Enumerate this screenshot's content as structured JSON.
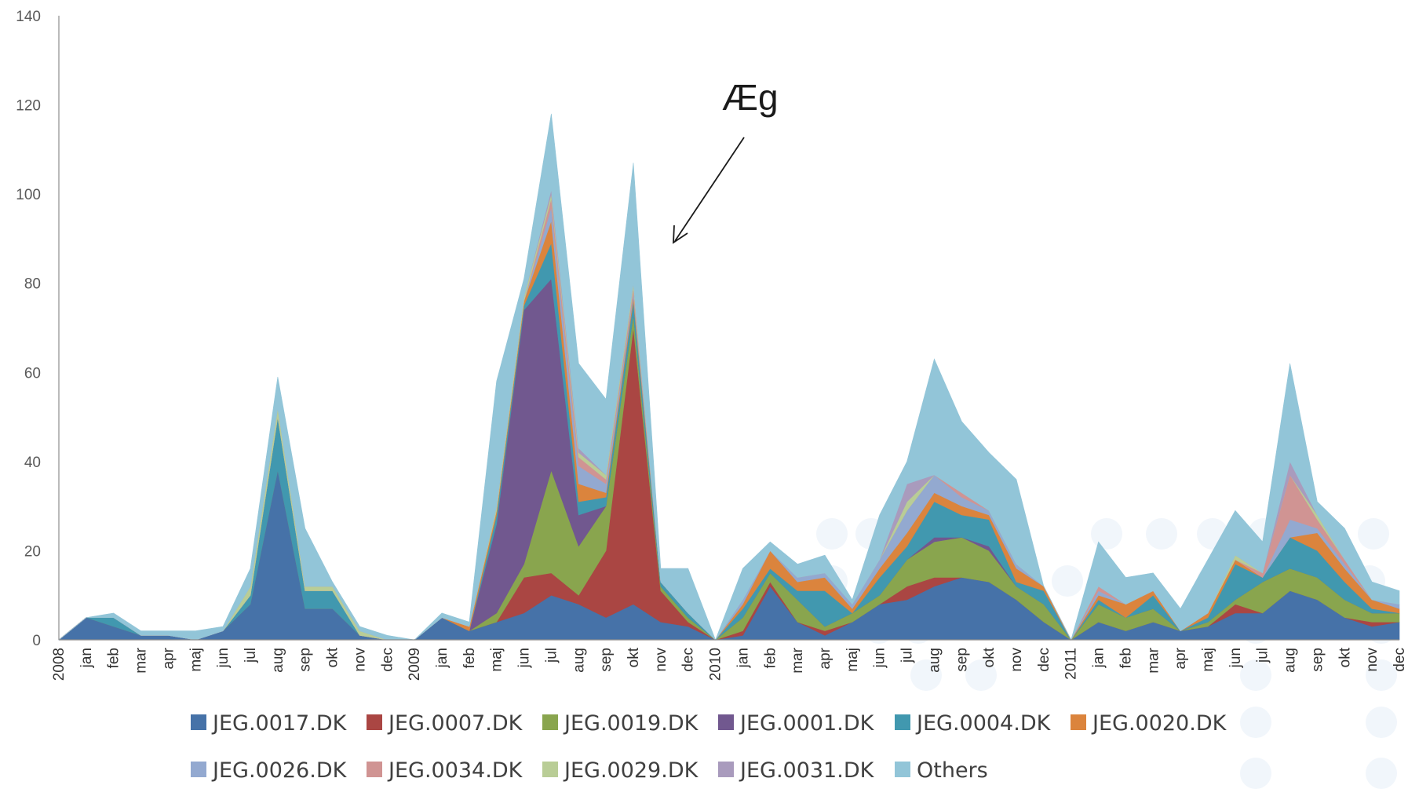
{
  "chart_data": {
    "type": "area",
    "stacked": true,
    "categories": [
      "2008",
      "jan",
      "feb",
      "mar",
      "apr",
      "maj",
      "jun",
      "jul",
      "aug",
      "sep",
      "okt",
      "nov",
      "dec",
      "2009",
      "jan",
      "feb",
      "maj",
      "jun",
      "jul",
      "aug",
      "sep",
      "okt",
      "nov",
      "dec",
      "2010",
      "jan",
      "feb",
      "mar",
      "apr",
      "maj",
      "jun",
      "jul",
      "aug",
      "sep",
      "okt",
      "nov",
      "dec",
      "2011",
      "jan",
      "feb",
      "mar",
      "apr",
      "maj",
      "jun",
      "jul",
      "aug",
      "sep",
      "okt",
      "nov",
      "dec"
    ],
    "ylim": [
      0,
      140
    ],
    "yticks": [
      0,
      20,
      40,
      60,
      80,
      100,
      120,
      140
    ],
    "legend_position": "bottom",
    "annotation": {
      "text": "Æg",
      "points_to": "nov"
    },
    "series": [
      {
        "name": "JEG.0017.DK",
        "color": "#4672a8",
        "values": [
          0,
          5,
          3,
          1,
          1,
          0,
          2,
          8,
          38,
          7,
          7,
          1,
          0,
          0,
          5,
          2,
          4,
          6,
          10,
          8,
          5,
          8,
          4,
          3,
          0,
          1,
          12,
          4,
          1,
          4,
          8,
          9,
          12,
          14,
          13,
          9,
          4,
          0,
          4,
          2,
          4,
          2,
          3,
          6,
          6,
          11,
          9,
          5,
          3,
          4
        ]
      },
      {
        "name": "JEG.0007.DK",
        "color": "#aa4643",
        "values": [
          0,
          0,
          0,
          0,
          0,
          0,
          0,
          0,
          0,
          0,
          0,
          0,
          0,
          0,
          0,
          0,
          0,
          8,
          5,
          2,
          15,
          62,
          7,
          1,
          0,
          1,
          1,
          0,
          1,
          0,
          0,
          3,
          2,
          0,
          0,
          0,
          0,
          0,
          0,
          0,
          0,
          0,
          0,
          2,
          0,
          0,
          0,
          0,
          1,
          0
        ]
      },
      {
        "name": "JEG.0019.DK",
        "color": "#89a54e",
        "values": [
          0,
          0,
          0,
          0,
          0,
          0,
          0,
          0,
          0,
          0,
          0,
          0,
          0,
          0,
          0,
          0,
          2,
          3,
          23,
          11,
          10,
          3,
          1,
          1,
          0,
          3,
          2,
          5,
          1,
          2,
          2,
          6,
          8,
          9,
          7,
          3,
          4,
          0,
          4,
          3,
          3,
          0,
          1,
          1,
          7,
          5,
          5,
          4,
          2,
          2
        ]
      },
      {
        "name": "JEG.0001.DK",
        "color": "#71588f",
        "values": [
          0,
          0,
          0,
          0,
          0,
          0,
          0,
          0,
          0,
          0,
          0,
          0,
          0,
          0,
          0,
          0,
          20,
          57,
          43,
          7,
          0,
          0,
          0,
          0,
          0,
          0,
          0,
          0,
          0,
          0,
          0,
          0,
          1,
          0,
          1,
          0,
          0,
          0,
          0,
          0,
          0,
          0,
          0,
          0,
          0,
          0,
          0,
          0,
          0,
          0
        ]
      },
      {
        "name": "JEG.0004.DK",
        "color": "#4198af",
        "values": [
          0,
          0,
          2,
          0,
          0,
          0,
          0,
          2,
          12,
          4,
          4,
          0,
          0,
          0,
          0,
          0,
          2,
          1,
          8,
          3,
          2,
          3,
          1,
          1,
          0,
          2,
          1,
          2,
          8,
          0,
          4,
          3,
          8,
          5,
          6,
          1,
          3,
          0,
          1,
          0,
          3,
          0,
          1,
          8,
          1,
          7,
          6,
          4,
          1,
          0
        ]
      },
      {
        "name": "JEG.0020.DK",
        "color": "#db843d",
        "values": [
          0,
          0,
          0,
          0,
          0,
          0,
          0,
          0,
          0,
          0,
          0,
          0,
          0,
          0,
          0,
          1,
          1,
          1,
          5,
          4,
          1,
          1,
          0,
          0,
          0,
          1,
          4,
          2,
          3,
          1,
          2,
          3,
          2,
          2,
          1,
          3,
          1,
          0,
          1,
          3,
          1,
          0,
          1,
          1,
          0,
          0,
          4,
          3,
          2,
          1
        ]
      },
      {
        "name": "JEG.0026.DK",
        "color": "#93a9d0",
        "values": [
          0,
          0,
          0,
          0,
          0,
          0,
          0,
          0,
          0,
          0,
          0,
          0,
          0,
          0,
          0,
          0,
          0,
          0,
          3,
          4,
          2,
          1,
          0,
          0,
          0,
          1,
          0,
          1,
          1,
          1,
          2,
          5,
          4,
          2,
          1,
          1,
          0,
          0,
          1,
          0,
          0,
          0,
          0,
          0,
          0,
          4,
          1,
          1,
          0,
          1
        ]
      },
      {
        "name": "JEG.0034.DK",
        "color": "#d09493",
        "values": [
          0,
          0,
          0,
          0,
          0,
          0,
          0,
          0,
          0,
          0,
          0,
          0,
          0,
          0,
          0,
          0,
          0,
          0,
          2,
          2,
          1,
          1,
          0,
          0,
          0,
          0,
          0,
          0,
          0,
          0,
          0,
          0,
          0,
          1,
          0,
          0,
          0,
          0,
          1,
          0,
          0,
          0,
          0,
          0,
          1,
          10,
          2,
          1,
          0,
          0
        ]
      },
      {
        "name": "JEG.0029.DK",
        "color": "#b9cd96",
        "values": [
          0,
          0,
          0,
          0,
          0,
          0,
          0,
          2,
          2,
          1,
          1,
          1,
          0,
          0,
          0,
          0,
          1,
          1,
          1,
          1,
          1,
          1,
          0,
          0,
          0,
          0,
          0,
          0,
          0,
          0,
          0,
          2,
          0,
          0,
          0,
          0,
          0,
          0,
          0,
          0,
          0,
          0,
          0,
          1,
          0,
          0,
          1,
          0,
          0,
          0
        ]
      },
      {
        "name": "JEG.0031.DK",
        "color": "#a99bbd",
        "values": [
          0,
          0,
          0,
          0,
          0,
          0,
          0,
          0,
          0,
          0,
          0,
          0,
          0,
          0,
          0,
          0,
          0,
          0,
          1,
          1,
          0,
          0,
          0,
          0,
          0,
          0,
          0,
          0,
          0,
          0,
          0,
          4,
          0,
          0,
          0,
          0,
          0,
          0,
          0,
          0,
          0,
          0,
          0,
          0,
          0,
          3,
          0,
          0,
          0,
          0
        ]
      },
      {
        "name": "Others",
        "color": "#92c5d8",
        "values": [
          0,
          0,
          1,
          1,
          1,
          2,
          1,
          4,
          7,
          13,
          1,
          1,
          1,
          0,
          1,
          1,
          28,
          4,
          17,
          19,
          17,
          27,
          3,
          10,
          0,
          7,
          2,
          3,
          4,
          1,
          10,
          5,
          26,
          16,
          13,
          19,
          0,
          0,
          10,
          6,
          4,
          5,
          12,
          10,
          7,
          22,
          3,
          7,
          4,
          3
        ]
      }
    ]
  }
}
